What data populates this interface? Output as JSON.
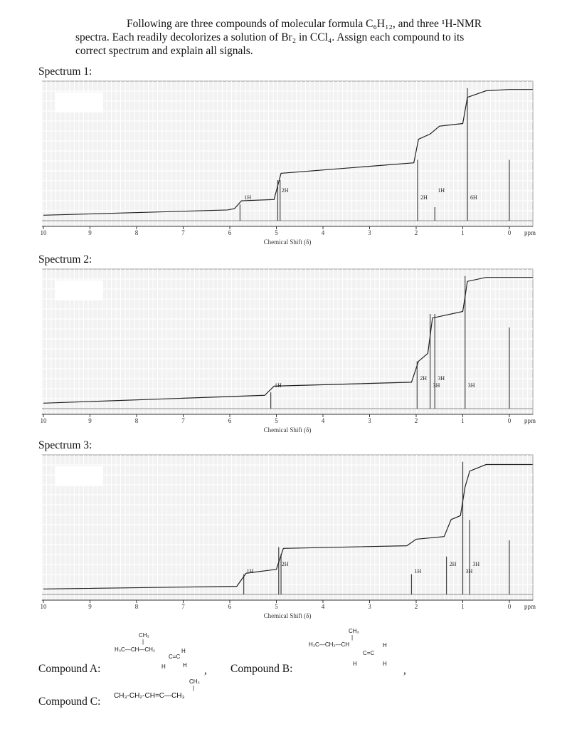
{
  "prompt": {
    "line1": "Following are three compounds of molecular formula C₆H₁₂, and three ¹H-NMR",
    "line2": "spectra. Each readily decolorizes a solution of Br₂ in CCl₄. Assign each compound to its",
    "line3": "correct spectrum and explain all signals."
  },
  "spectra": [
    {
      "title": "Spectrum 1:",
      "xlabel": "Chemical Shift (δ)",
      "unit": "ppm",
      "integrals": [
        {
          "label": "1H",
          "x": 5.75
        },
        {
          "label": "2H",
          "x": 4.95
        },
        {
          "label": "2H",
          "x": 1.97
        },
        {
          "label": "1H",
          "x": 1.6
        },
        {
          "label": "6H",
          "x": 0.9
        }
      ]
    },
    {
      "title": "Spectrum 2:",
      "xlabel": "Chemical Shift (δ)",
      "unit": "ppm",
      "integrals": [
        {
          "label": "1H",
          "x": 5.1
        },
        {
          "label": "2H",
          "x": 1.98
        },
        {
          "label": "3H",
          "x": 1.7
        },
        {
          "label": "3H",
          "x": 1.6
        },
        {
          "label": "3H",
          "x": 0.95
        }
      ]
    },
    {
      "title": "Spectrum 3:",
      "xlabel": "Chemical Shift (δ)",
      "unit": "ppm",
      "integrals": [
        {
          "label": "1H",
          "x": 5.7
        },
        {
          "label": "2H",
          "x": 4.95
        },
        {
          "label": "1H",
          "x": 2.1
        },
        {
          "label": "2H",
          "x": 1.35
        },
        {
          "label": "3H",
          "x": 1.0
        },
        {
          "label": "3H",
          "x": 0.85
        }
      ]
    }
  ],
  "axis_ticks": [
    "10",
    "9",
    "8",
    "7",
    "6",
    "5",
    "4",
    "3",
    "2",
    "1",
    "0"
  ],
  "compounds": {
    "a_label": "Compound A:",
    "b_label": "Compound B:",
    "c_label": "Compound C:",
    "a_struct": {
      "ch3": "CH₃",
      "chain": "H₃C—CH—CH₂",
      "cc": "C=C",
      "h": "H"
    },
    "b_struct": {
      "ch3": "CH₃",
      "chain": "H₃C—CH₂—CH",
      "cc": "C=C",
      "h": "H"
    },
    "c_struct": {
      "ch3": "CH₃",
      "chain": "CH₃-CH₂-CH=C—CH₃"
    },
    "comma": ","
  }
}
